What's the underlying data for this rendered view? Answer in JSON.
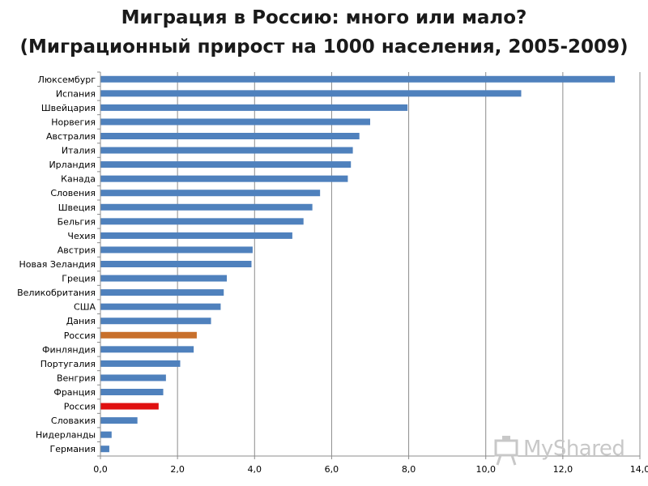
{
  "chart_data": {
    "type": "bar",
    "orientation": "horizontal",
    "title": "Миграция в Россию: много или мало?",
    "subtitle": "(Миграционный прирост на 1000 населения, 2005-2009)",
    "categories": [
      "Люксембург",
      "Испания",
      "Швейцария",
      "Норвегия",
      "Австралия",
      "Италия",
      "Ирландия",
      "Канада",
      "Словения",
      "Швеция",
      "Бельгия",
      "Чехия",
      "Австрия",
      "Новая Зеландия",
      "Греция",
      "Великобритания",
      "США",
      "Дания",
      "Россия",
      "Финляндия",
      "Португалия",
      "Венгрия",
      "Франция",
      "Россия",
      "Словакия",
      "Нидерланды",
      "Германия"
    ],
    "values": [
      13.35,
      10.92,
      7.97,
      7.0,
      6.72,
      6.55,
      6.5,
      6.42,
      5.7,
      5.5,
      5.27,
      4.98,
      3.95,
      3.92,
      3.28,
      3.2,
      3.12,
      2.87,
      2.5,
      2.42,
      2.07,
      1.7,
      1.63,
      1.51,
      0.96,
      0.29,
      0.23
    ],
    "bar_colors": [
      "#4f81bd",
      "#4f81bd",
      "#4f81bd",
      "#4f81bd",
      "#4f81bd",
      "#4f81bd",
      "#4f81bd",
      "#4f81bd",
      "#4f81bd",
      "#4f81bd",
      "#4f81bd",
      "#4f81bd",
      "#4f81bd",
      "#4f81bd",
      "#4f81bd",
      "#4f81bd",
      "#4f81bd",
      "#4f81bd",
      "#c8702c",
      "#4f81bd",
      "#4f81bd",
      "#4f81bd",
      "#4f81bd",
      "#e01010",
      "#4f81bd",
      "#4f81bd",
      "#4f81bd"
    ],
    "xlim": [
      0,
      14
    ],
    "xticks": [
      0,
      2,
      4,
      6,
      8,
      10,
      12,
      14
    ],
    "xtick_labels": [
      "0,0",
      "2,0",
      "4,0",
      "6,0",
      "8,0",
      "10,0",
      "12,0",
      "14,0"
    ],
    "grid": true,
    "legend": "none"
  },
  "watermark": {
    "text": "MyShared",
    "icon": "presentation-board-icon"
  }
}
